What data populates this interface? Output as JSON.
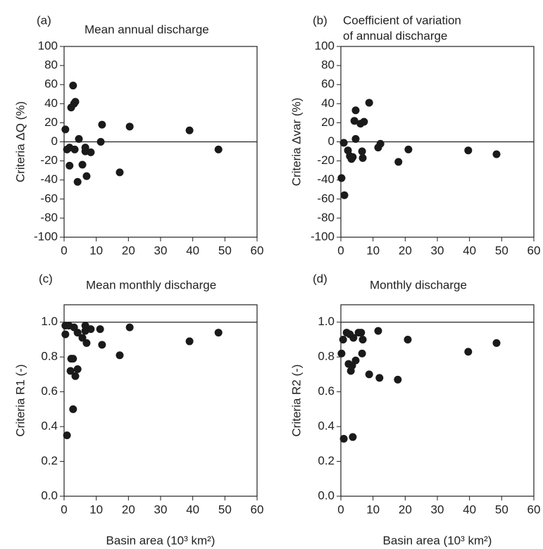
{
  "chart_data": [
    {
      "type": "scatter",
      "panel_label": "(a)",
      "title": [
        "Mean annual discharge"
      ],
      "ylabel": "Criteria ΔQ (%)",
      "color": "#1a1a1a",
      "reference_line": 0,
      "x": [
        0.4,
        0.9,
        1.7,
        1.7,
        2.2,
        2.8,
        3.1,
        3.5,
        3.3,
        4.2,
        4.6,
        5.7,
        6.6,
        6.6,
        7.0,
        8.3,
        11.4,
        11.8,
        17.3,
        20.4,
        39,
        48
      ],
      "values": [
        13,
        -8,
        -6,
        -25,
        36,
        59,
        40,
        42,
        -8,
        -42,
        3,
        -24,
        -6,
        -10,
        -36,
        -11,
        0,
        18,
        -32,
        16,
        12,
        -8
      ],
      "xlim": [
        0,
        60
      ],
      "xticks": [
        0,
        10,
        20,
        30,
        40,
        50,
        60
      ],
      "ylim": [
        -100,
        100
      ],
      "yticks": [
        -100,
        -80,
        -60,
        -40,
        -20,
        0,
        20,
        40,
        60,
        80,
        100
      ]
    },
    {
      "type": "scatter",
      "panel_label": "(b)",
      "title": [
        "Coefficient of variation",
        "of annual discharge"
      ],
      "ylabel": "Criteria Δvar (%)",
      "color": "#1a1a1a",
      "reference_line": 0,
      "x": [
        0.2,
        0.9,
        1.1,
        2.2,
        2.8,
        3.3,
        3.7,
        4.2,
        4.6,
        4.6,
        6.1,
        6.6,
        6.8,
        7.2,
        8.8,
        11.6,
        12.3,
        17.9,
        21,
        39.6,
        48.4
      ],
      "values": [
        -38,
        -1,
        -56,
        -9,
        -15,
        -18,
        -16,
        22,
        33,
        3,
        19,
        -10,
        -17,
        21,
        41,
        -6,
        -2,
        -21,
        -8,
        -9,
        -13
      ],
      "xlim": [
        0,
        60
      ],
      "xticks": [
        0,
        10,
        20,
        30,
        40,
        50,
        60
      ],
      "ylim": [
        -100,
        100
      ],
      "yticks": [
        -100,
        -80,
        -60,
        -40,
        -20,
        0,
        20,
        40,
        60,
        80,
        100
      ]
    },
    {
      "type": "scatter",
      "panel_label": "(c)",
      "title": [
        "Mean monthly discharge"
      ],
      "ylabel": "Criteria R1 (-)",
      "xlabel": "Basin area (10³ km²)",
      "color": "#1a1a1a",
      "reference_line": 1.0,
      "x": [
        0.4,
        0.4,
        0.9,
        1.5,
        2.0,
        2.2,
        2.8,
        2.8,
        3.1,
        3.5,
        4.2,
        4.2,
        5.7,
        6.6,
        6.6,
        7.0,
        8.3,
        11.2,
        11.8,
        17.3,
        20.4,
        39,
        48
      ],
      "values": [
        0.98,
        0.93,
        0.35,
        0.98,
        0.72,
        0.79,
        0.79,
        0.5,
        0.97,
        0.69,
        0.73,
        0.94,
        0.91,
        0.98,
        0.95,
        0.88,
        0.96,
        0.96,
        0.87,
        0.81,
        0.97,
        0.89,
        0.94
      ],
      "xlim": [
        0,
        60
      ],
      "xticks": [
        0,
        10,
        20,
        30,
        40,
        50,
        60
      ],
      "ylim": [
        0,
        1.1
      ],
      "yticks": [
        {
          "value": 0,
          "label": "0.0"
        },
        0.2,
        0.4,
        0.6,
        0.8,
        {
          "value": 1,
          "label": "1.0"
        }
      ]
    },
    {
      "type": "scatter",
      "panel_label": "(d)",
      "title": [
        "Monthly discharge"
      ],
      "ylabel": "Criteria R2 (-)",
      "xlabel": "Basin area (10³ km²)",
      "color": "#1a1a1a",
      "reference_line": 1.0,
      "x": [
        0.2,
        0.7,
        0.9,
        1.8,
        2.4,
        2.8,
        3.1,
        3.5,
        3.7,
        3.9,
        4.6,
        5.5,
        6.3,
        6.6,
        6.8,
        8.8,
        11.6,
        12,
        17.7,
        20.8,
        39.6,
        48.4
      ],
      "values": [
        0.82,
        0.9,
        0.33,
        0.94,
        0.76,
        0.93,
        0.72,
        0.75,
        0.34,
        0.91,
        0.78,
        0.94,
        0.94,
        0.82,
        0.9,
        0.7,
        0.95,
        0.68,
        0.67,
        0.9,
        0.83,
        0.88
      ],
      "xlim": [
        0,
        60
      ],
      "xticks": [
        0,
        10,
        20,
        30,
        40,
        50,
        60
      ],
      "ylim": [
        0,
        1.1
      ],
      "yticks": [
        {
          "value": 0,
          "label": "0.0"
        },
        0.2,
        0.4,
        0.6,
        0.8,
        {
          "value": 1,
          "label": "1.0"
        }
      ]
    }
  ]
}
